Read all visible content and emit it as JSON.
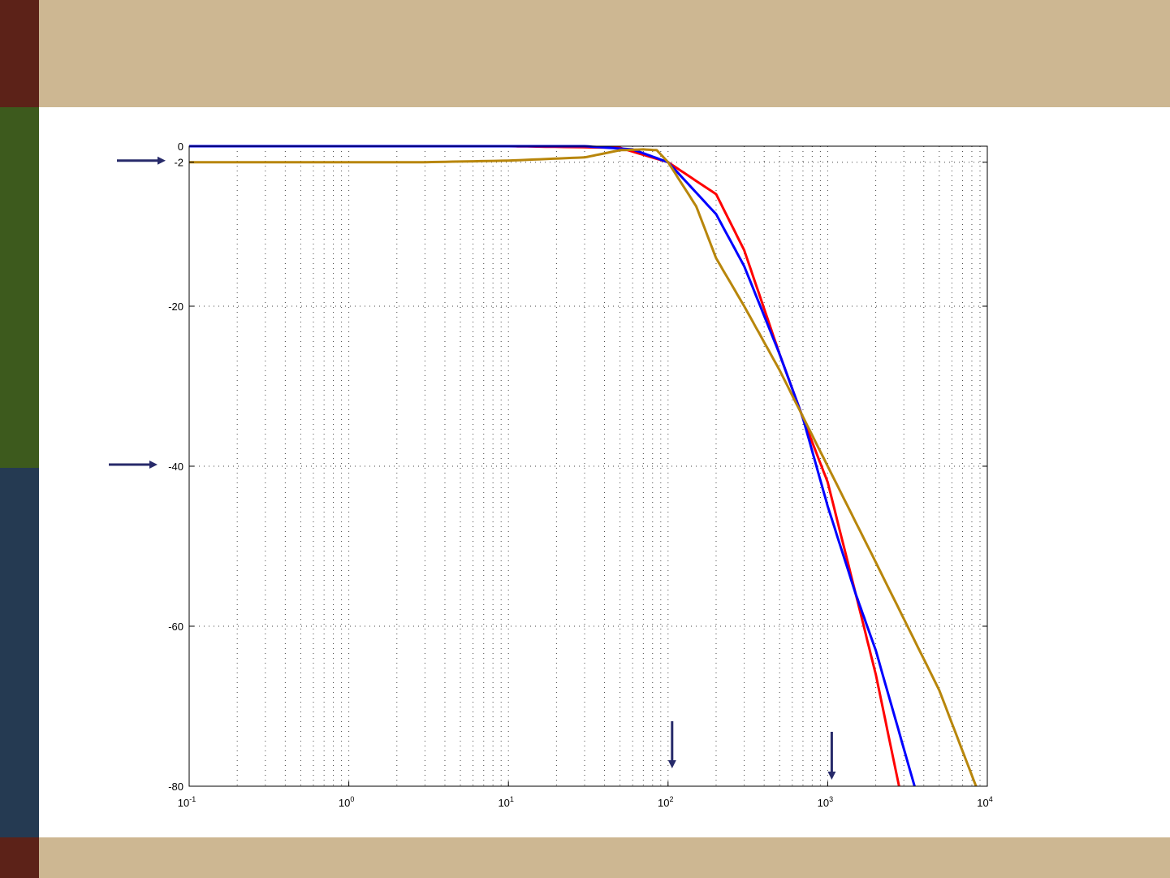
{
  "theme": {
    "header_color": "#cdb792",
    "footer_color": "#cdb792",
    "side_top_color": "#5c2218",
    "side_mid_color": "#3d5a1d",
    "side_low_color": "#253a52",
    "side_bottom_color": "#5c2218",
    "arrow_color": "#272a6a"
  },
  "chart_data": {
    "type": "line",
    "title": "",
    "xlabel": "",
    "ylabel": "",
    "xscale": "log",
    "xlim": [
      0.1,
      10000
    ],
    "ylim": [
      -80,
      0
    ],
    "grid": true,
    "x_tick_labels": [
      {
        "base": "10",
        "exp": "-1"
      },
      {
        "base": "10",
        "exp": "0"
      },
      {
        "base": "10",
        "exp": "1"
      },
      {
        "base": "10",
        "exp": "2"
      },
      {
        "base": "10",
        "exp": "3"
      },
      {
        "base": "10",
        "exp": "4"
      }
    ],
    "y_ticks": [
      0,
      -2,
      -20,
      -40,
      -60,
      -80
    ],
    "y_tick_labels": [
      "0",
      "-2",
      "-20",
      "-40",
      "-60",
      "-80"
    ],
    "series": [
      {
        "color": "#ff0000",
        "x": [
          0.1,
          10,
          50,
          100,
          200,
          300,
          500,
          700,
          1000,
          1500,
          2000,
          2800
        ],
        "y": [
          0,
          0,
          -0.2,
          -2,
          -6,
          -13,
          -26,
          -34,
          -42,
          -56,
          -66,
          -80
        ]
      },
      {
        "color": "#0000ff",
        "x": [
          0.1,
          10,
          30,
          60,
          100,
          200,
          300,
          500,
          700,
          1000,
          1500,
          2000,
          3500
        ],
        "y": [
          0,
          0,
          0,
          -0.4,
          -2,
          -8.5,
          -15,
          -26,
          -34,
          -45,
          -56,
          -63,
          -80
        ]
      },
      {
        "color": "#b8860b",
        "x": [
          0.1,
          3,
          10,
          30,
          50,
          70,
          85,
          100,
          150,
          200,
          300,
          500,
          1000,
          2000,
          5000,
          8500
        ],
        "y": [
          -2,
          -2,
          -1.8,
          -1.4,
          -0.5,
          -0.4,
          -0.5,
          -2,
          -7.5,
          -14,
          -20,
          -28,
          -40,
          -52,
          -68,
          -80
        ]
      }
    ],
    "annotations": [
      {
        "type": "arrow-right",
        "target_y": -2
      },
      {
        "type": "arrow-right",
        "target_y": -40
      },
      {
        "type": "arrow-down",
        "target_x": 100
      },
      {
        "type": "arrow-down",
        "target_x": 1000
      }
    ]
  }
}
